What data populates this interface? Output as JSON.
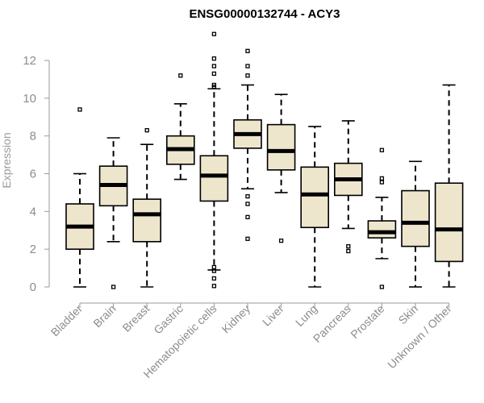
{
  "chart_data": {
    "type": "boxplot",
    "title": "ENSG00000132744 - ACY3",
    "xlabel": "",
    "ylabel": "Expression",
    "ylim": [
      0,
      13.5
    ],
    "yticks": [
      0,
      2,
      4,
      6,
      8,
      10,
      12
    ],
    "box_fill": "#ede6cd",
    "box_stroke": "#000000",
    "axis_color": "#9a9a9a",
    "categories": [
      "Bladder",
      "Brain",
      "Breast",
      "Gastric",
      "Hematopoietic cells",
      "Kidney",
      "Liver",
      "Lung",
      "Pancreas",
      "Prostate",
      "Skin",
      "Unknown / Other"
    ],
    "boxes": [
      {
        "name": "Bladder",
        "whisker_low": 0.0,
        "q1": 2.0,
        "median": 3.2,
        "q3": 4.4,
        "whisker_high": 6.0,
        "outliers": [
          9.4
        ]
      },
      {
        "name": "Brain",
        "whisker_low": 2.4,
        "q1": 4.3,
        "median": 5.4,
        "q3": 6.4,
        "whisker_high": 7.9,
        "outliers": [
          0.0
        ]
      },
      {
        "name": "Breast",
        "whisker_low": 0.0,
        "q1": 2.4,
        "median": 3.85,
        "q3": 4.65,
        "whisker_high": 7.55,
        "outliers": [
          8.3
        ]
      },
      {
        "name": "Gastric",
        "whisker_low": 5.7,
        "q1": 6.5,
        "median": 7.3,
        "q3": 8.0,
        "whisker_high": 9.7,
        "outliers": [
          11.2
        ]
      },
      {
        "name": "Hematopoietic cells",
        "whisker_low": 0.9,
        "q1": 4.55,
        "median": 5.9,
        "q3": 6.95,
        "whisker_high": 10.5,
        "outliers": [
          13.4,
          12.1,
          11.7,
          11.3,
          10.7,
          10.6,
          1.05,
          0.85,
          0.45,
          0.05
        ]
      },
      {
        "name": "Kidney",
        "whisker_low": 5.2,
        "q1": 7.35,
        "median": 8.1,
        "q3": 8.85,
        "whisker_high": 10.7,
        "outliers": [
          12.5,
          11.7,
          11.2,
          4.8,
          4.4,
          3.7,
          2.55
        ]
      },
      {
        "name": "Liver",
        "whisker_low": 5.0,
        "q1": 6.2,
        "median": 7.2,
        "q3": 8.6,
        "whisker_high": 10.2,
        "outliers": [
          2.45
        ]
      },
      {
        "name": "Lung",
        "whisker_low": 0.0,
        "q1": 3.15,
        "median": 4.9,
        "q3": 6.35,
        "whisker_high": 8.5,
        "outliers": []
      },
      {
        "name": "Pancreas",
        "whisker_low": 3.1,
        "q1": 4.85,
        "median": 5.7,
        "q3": 6.55,
        "whisker_high": 8.8,
        "outliers": [
          2.15,
          1.9
        ]
      },
      {
        "name": "Prostate",
        "whisker_low": 1.5,
        "q1": 2.6,
        "median": 2.9,
        "q3": 3.5,
        "whisker_high": 4.75,
        "outliers": [
          7.25,
          5.75,
          5.55,
          0.0
        ]
      },
      {
        "name": "Skin",
        "whisker_low": 0.0,
        "q1": 2.15,
        "median": 3.4,
        "q3": 5.1,
        "whisker_high": 6.65,
        "outliers": []
      },
      {
        "name": "Unknown / Other",
        "whisker_low": 0.0,
        "q1": 1.35,
        "median": 3.05,
        "q3": 5.5,
        "whisker_high": 10.7,
        "outliers": []
      }
    ]
  }
}
